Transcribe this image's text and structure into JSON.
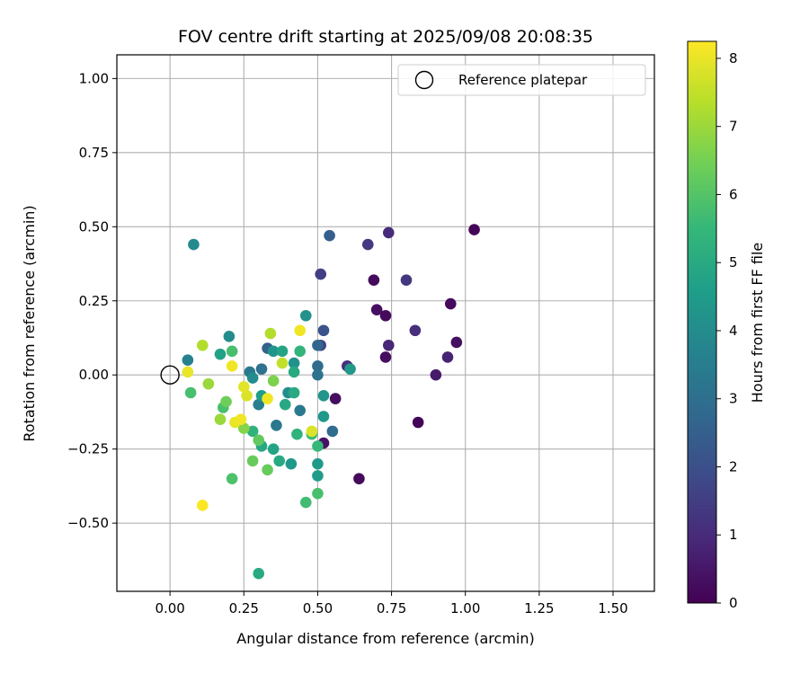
{
  "chart_data": {
    "type": "scatter",
    "title": "FOV centre drift starting at 2025/09/08 20:08:35",
    "xlabel": "Angular distance from reference (arcmin)",
    "ylabel": "Rotation from reference (arcmin)",
    "xlim": [
      -0.18,
      1.64
    ],
    "ylim": [
      -0.73,
      1.08
    ],
    "xticks": [
      0.0,
      0.25,
      0.5,
      0.75,
      1.0,
      1.25,
      1.5
    ],
    "xtick_labels": [
      "0.00",
      "0.25",
      "0.50",
      "0.75",
      "1.00",
      "1.25",
      "1.50"
    ],
    "yticks": [
      -0.5,
      -0.25,
      0.0,
      0.25,
      0.5,
      0.75,
      1.0
    ],
    "ytick_labels": [
      "−0.50",
      "−0.25",
      "0.00",
      "0.25",
      "0.50",
      "0.75",
      "1.00"
    ],
    "grid": true,
    "legend": {
      "position": "top-right",
      "label": "Reference platepar",
      "marker": "open-circle"
    },
    "reference_point": {
      "x": 0.0,
      "y": 0.0
    },
    "colorbar": {
      "label": "Hours from first FF file",
      "colormap": "viridis",
      "range": [
        0,
        8.25
      ],
      "ticks": [
        0,
        1,
        2,
        3,
        4,
        5,
        6,
        7,
        8
      ],
      "tick_labels": [
        "0",
        "1",
        "2",
        "3",
        "4",
        "5",
        "6",
        "7",
        "8"
      ]
    },
    "points": [
      {
        "x": 1.03,
        "y": 0.49,
        "h": 0.1
      },
      {
        "x": 0.69,
        "y": 0.32,
        "h": 0.2
      },
      {
        "x": 0.73,
        "y": 0.2,
        "h": 0.2
      },
      {
        "x": 0.7,
        "y": 0.22,
        "h": 0.3
      },
      {
        "x": 0.95,
        "y": 0.24,
        "h": 0.2
      },
      {
        "x": 0.97,
        "y": 0.11,
        "h": 0.3
      },
      {
        "x": 0.73,
        "y": 0.06,
        "h": 0.3
      },
      {
        "x": 0.84,
        "y": -0.16,
        "h": 0.1
      },
      {
        "x": 0.64,
        "y": -0.35,
        "h": 0.2
      },
      {
        "x": 0.56,
        "y": -0.08,
        "h": 0.3
      },
      {
        "x": 0.52,
        "y": -0.23,
        "h": 0.4
      },
      {
        "x": 0.9,
        "y": 0.0,
        "h": 0.6
      },
      {
        "x": 0.94,
        "y": 0.06,
        "h": 0.8
      },
      {
        "x": 0.74,
        "y": 0.1,
        "h": 0.9
      },
      {
        "x": 0.74,
        "y": 0.48,
        "h": 1.0
      },
      {
        "x": 0.83,
        "y": 0.15,
        "h": 1.1
      },
      {
        "x": 0.6,
        "y": 0.03,
        "h": 1.1
      },
      {
        "x": 0.8,
        "y": 0.32,
        "h": 1.3
      },
      {
        "x": 0.67,
        "y": 0.44,
        "h": 1.4
      },
      {
        "x": 0.51,
        "y": 0.34,
        "h": 1.5
      },
      {
        "x": 0.51,
        "y": 0.1,
        "h": 1.6
      },
      {
        "x": 0.52,
        "y": 0.15,
        "h": 2.1
      },
      {
        "x": 0.54,
        "y": 0.47,
        "h": 2.5
      },
      {
        "x": 0.33,
        "y": 0.09,
        "h": 2.6
      },
      {
        "x": 0.5,
        "y": 0.1,
        "h": 2.7
      },
      {
        "x": 0.5,
        "y": 0.03,
        "h": 2.9
      },
      {
        "x": 0.55,
        "y": -0.19,
        "h": 2.9
      },
      {
        "x": 0.5,
        "y": 0.0,
        "h": 3.1
      },
      {
        "x": 0.31,
        "y": 0.02,
        "h": 3.1
      },
      {
        "x": 0.27,
        "y": 0.01,
        "h": 3.3
      },
      {
        "x": 0.36,
        "y": -0.17,
        "h": 3.3
      },
      {
        "x": 0.44,
        "y": -0.12,
        "h": 3.4
      },
      {
        "x": 0.3,
        "y": -0.1,
        "h": 3.5
      },
      {
        "x": 0.06,
        "y": 0.05,
        "h": 3.6
      },
      {
        "x": 0.08,
        "y": 0.44,
        "h": 3.9
      },
      {
        "x": 0.2,
        "y": 0.13,
        "h": 4.0
      },
      {
        "x": 0.28,
        "y": -0.01,
        "h": 4.0
      },
      {
        "x": 0.4,
        "y": -0.06,
        "h": 4.1
      },
      {
        "x": 0.42,
        "y": 0.04,
        "h": 4.2
      },
      {
        "x": 0.46,
        "y": 0.2,
        "h": 4.2
      },
      {
        "x": 0.35,
        "y": 0.08,
        "h": 4.3
      },
      {
        "x": 0.52,
        "y": -0.07,
        "h": 4.3
      },
      {
        "x": 0.52,
        "y": -0.14,
        "h": 4.4
      },
      {
        "x": 0.61,
        "y": 0.02,
        "h": 4.4
      },
      {
        "x": 0.41,
        "y": -0.3,
        "h": 4.4
      },
      {
        "x": 0.5,
        "y": -0.3,
        "h": 4.5
      },
      {
        "x": 0.5,
        "y": -0.34,
        "h": 4.5
      },
      {
        "x": 0.31,
        "y": -0.07,
        "h": 4.6
      },
      {
        "x": 0.17,
        "y": 0.07,
        "h": 4.7
      },
      {
        "x": 0.38,
        "y": 0.08,
        "h": 4.8
      },
      {
        "x": 0.35,
        "y": -0.25,
        "h": 4.8
      },
      {
        "x": 0.31,
        "y": -0.24,
        "h": 4.9
      },
      {
        "x": 0.39,
        "y": -0.1,
        "h": 4.9
      },
      {
        "x": 0.42,
        "y": -0.06,
        "h": 5.0
      },
      {
        "x": 0.37,
        "y": -0.29,
        "h": 5.0
      },
      {
        "x": 0.42,
        "y": 0.01,
        "h": 5.0
      },
      {
        "x": 0.28,
        "y": -0.19,
        "h": 5.3
      },
      {
        "x": 0.43,
        "y": -0.2,
        "h": 5.3
      },
      {
        "x": 0.44,
        "y": 0.08,
        "h": 5.4
      },
      {
        "x": 0.5,
        "y": -0.24,
        "h": 5.5
      },
      {
        "x": 0.48,
        "y": -0.2,
        "h": 5.6
      },
      {
        "x": 0.46,
        "y": -0.43,
        "h": 5.7
      },
      {
        "x": 0.5,
        "y": -0.4,
        "h": 5.8
      },
      {
        "x": 0.18,
        "y": -0.11,
        "h": 5.8
      },
      {
        "x": 0.21,
        "y": 0.08,
        "h": 5.8
      },
      {
        "x": 0.07,
        "y": -0.06,
        "h": 5.8
      },
      {
        "x": 0.21,
        "y": -0.35,
        "h": 5.9
      },
      {
        "x": 0.3,
        "y": -0.67,
        "h": 5.0
      },
      {
        "x": 0.3,
        "y": -0.22,
        "h": 6.2
      },
      {
        "x": 0.28,
        "y": -0.29,
        "h": 6.3
      },
      {
        "x": 0.33,
        "y": -0.32,
        "h": 6.3
      },
      {
        "x": 0.19,
        "y": -0.09,
        "h": 6.4
      },
      {
        "x": 0.35,
        "y": -0.02,
        "h": 6.6
      },
      {
        "x": 0.25,
        "y": -0.18,
        "h": 6.7
      },
      {
        "x": 0.17,
        "y": -0.15,
        "h": 7.0
      },
      {
        "x": 0.13,
        "y": -0.03,
        "h": 7.0
      },
      {
        "x": 0.34,
        "y": 0.14,
        "h": 7.3
      },
      {
        "x": 0.11,
        "y": 0.1,
        "h": 7.3
      },
      {
        "x": 0.38,
        "y": 0.04,
        "h": 7.5
      },
      {
        "x": 0.48,
        "y": -0.19,
        "h": 7.8
      },
      {
        "x": 0.26,
        "y": -0.07,
        "h": 7.8
      },
      {
        "x": 0.25,
        "y": -0.04,
        "h": 7.9
      },
      {
        "x": 0.22,
        "y": -0.16,
        "h": 8.0
      },
      {
        "x": 0.06,
        "y": 0.01,
        "h": 8.0
      },
      {
        "x": 0.21,
        "y": 0.03,
        "h": 8.1
      },
      {
        "x": 0.44,
        "y": 0.15,
        "h": 8.1
      },
      {
        "x": 0.11,
        "y": -0.44,
        "h": 8.2
      },
      {
        "x": 0.33,
        "y": -0.08,
        "h": 8.1
      },
      {
        "x": 0.24,
        "y": -0.15,
        "h": 8.1
      }
    ]
  }
}
